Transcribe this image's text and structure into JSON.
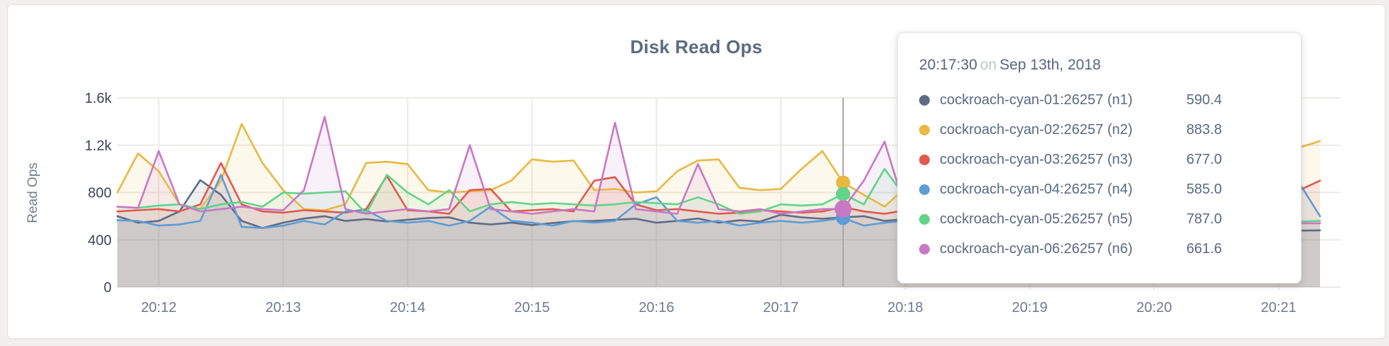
{
  "card": {
    "title": "Disk Read Ops"
  },
  "palette": {
    "page_bg": "#f1f0ee",
    "card_bg": "#ffffff",
    "grid_line": "#eceae6",
    "hover_line": "#a9a9a9",
    "y_tick_color": "#3b4757",
    "x_tick_color": "#6e7a8e",
    "axis_label_color": "#71808f",
    "title_color": "#5c6c80"
  },
  "chart_data": {
    "type": "line",
    "area": true,
    "grid": true,
    "title": "Disk Read Ops",
    "ylabel": "Read Ops",
    "ylim": [
      0,
      1600
    ],
    "y_ticks": [
      {
        "value": 0,
        "label": "0"
      },
      {
        "value": 400,
        "label": "400"
      },
      {
        "value": 800,
        "label": "800"
      },
      {
        "value": 1200,
        "label": "1.2k"
      },
      {
        "value": 1600,
        "label": "1.6k"
      }
    ],
    "x_start": "20:11:40",
    "x_step_seconds": 10,
    "n_points": 59,
    "x_ticks": [
      "20:12",
      "20:13",
      "20:14",
      "20:15",
      "20:16",
      "20:17",
      "20:18",
      "20:19",
      "20:20",
      "20:21"
    ],
    "x_tick_first_index": 2,
    "x_tick_every": 6,
    "fill_opacity": 0.1,
    "series": [
      {
        "name": "cockroach-cyan-01:26257 (n1)",
        "node": "n1",
        "color": "#5f6c87",
        "values": [
          600,
          545,
          560,
          640,
          905,
          780,
          560,
          500,
          545,
          580,
          600,
          560,
          575,
          555,
          570,
          585,
          590,
          545,
          530,
          545,
          525,
          542,
          558,
          560,
          570,
          578,
          545,
          560,
          580,
          545,
          565,
          555,
          612,
          590,
          578,
          590.4,
          600,
          560,
          575,
          548,
          565,
          555,
          560,
          590,
          530,
          545,
          560,
          525,
          560,
          585,
          570,
          555,
          528,
          540,
          545,
          532,
          482,
          478,
          480
        ]
      },
      {
        "name": "cockroach-cyan-02:26257 (n2)",
        "node": "n2",
        "color": "#e8b842",
        "values": [
          800,
          1130,
          980,
          700,
          660,
          900,
          1380,
          1050,
          820,
          660,
          650,
          700,
          1050,
          1060,
          1040,
          820,
          800,
          810,
          820,
          900,
          1080,
          1060,
          1070,
          820,
          830,
          800,
          810,
          980,
          1070,
          1080,
          840,
          820,
          830,
          1000,
          1150,
          883.8,
          780,
          680,
          840,
          830,
          820,
          810,
          800,
          1080,
          1130,
          840,
          830,
          600,
          560,
          1080,
          1230,
          1225,
          1180,
          560,
          570,
          840,
          1090,
          1180,
          1235
        ]
      },
      {
        "name": "cockroach-cyan-03:26257 (n3)",
        "node": "n3",
        "color": "#e0594f",
        "values": [
          640,
          650,
          660,
          640,
          700,
          1050,
          700,
          640,
          630,
          650,
          640,
          630,
          660,
          940,
          650,
          640,
          620,
          820,
          830,
          640,
          650,
          660,
          640,
          900,
          930,
          700,
          650,
          660,
          640,
          620,
          630,
          650,
          640,
          630,
          640,
          677.0,
          640,
          620,
          650,
          630,
          640,
          650,
          930,
          640,
          620,
          630,
          640,
          560,
          545,
          640,
          650,
          640,
          900,
          560,
          640,
          650,
          700,
          820,
          900
        ]
      },
      {
        "name": "cockroach-cyan-04:26257 (n4)",
        "node": "n4",
        "color": "#5c9dd6",
        "values": [
          565,
          560,
          520,
          530,
          560,
          950,
          510,
          500,
          520,
          560,
          530,
          640,
          650,
          560,
          545,
          560,
          520,
          560,
          680,
          560,
          545,
          520,
          560,
          545,
          560,
          700,
          760,
          560,
          545,
          560,
          520,
          545,
          560,
          545,
          560,
          585.0,
          520,
          545,
          560,
          520,
          545,
          560,
          545,
          520,
          560,
          680,
          545,
          520,
          560,
          545,
          440,
          545,
          520,
          560,
          545,
          560,
          1100,
          880,
          600
        ]
      },
      {
        "name": "cockroach-cyan-05:26257 (n5)",
        "node": "n5",
        "color": "#62d38a",
        "values": [
          680,
          670,
          690,
          700,
          660,
          700,
          720,
          680,
          800,
          790,
          800,
          810,
          620,
          950,
          800,
          700,
          820,
          640,
          700,
          720,
          700,
          710,
          700,
          690,
          700,
          720,
          710,
          700,
          760,
          700,
          620,
          640,
          700,
          690,
          700,
          787.0,
          700,
          1000,
          760,
          700,
          640,
          650,
          640,
          960,
          850,
          650,
          700,
          560,
          545,
          700,
          690,
          700,
          710,
          690,
          700,
          560,
          550,
          555,
          560
        ]
      },
      {
        "name": "cockroach-cyan-06:26257 (n6)",
        "node": "n6",
        "color": "#c978c4",
        "values": [
          680,
          670,
          1150,
          700,
          640,
          660,
          680,
          660,
          650,
          820,
          1440,
          660,
          620,
          640,
          660,
          640,
          660,
          1200,
          660,
          640,
          620,
          640,
          660,
          640,
          1390,
          660,
          640,
          620,
          1040,
          660,
          640,
          660,
          620,
          640,
          660,
          661.6,
          900,
          1230,
          660,
          540,
          560,
          545,
          560,
          540,
          560,
          545,
          560,
          540,
          560,
          545,
          1240,
          560,
          545,
          560,
          540,
          560,
          545,
          540,
          540
        ]
      }
    ],
    "hover": {
      "index": 35,
      "time": "20:17:30"
    }
  },
  "tooltip": {
    "time": "20:17:30",
    "on_word": "on",
    "date": "Sep 13th, 2018",
    "rows": [
      {
        "name": "cockroach-cyan-01:26257 (n1)",
        "value": "590.4"
      },
      {
        "name": "cockroach-cyan-02:26257 (n2)",
        "value": "883.8"
      },
      {
        "name": "cockroach-cyan-03:26257 (n3)",
        "value": "677.0"
      },
      {
        "name": "cockroach-cyan-04:26257 (n4)",
        "value": "585.0"
      },
      {
        "name": "cockroach-cyan-05:26257 (n5)",
        "value": "787.0"
      },
      {
        "name": "cockroach-cyan-06:26257 (n6)",
        "value": "661.6"
      }
    ]
  }
}
